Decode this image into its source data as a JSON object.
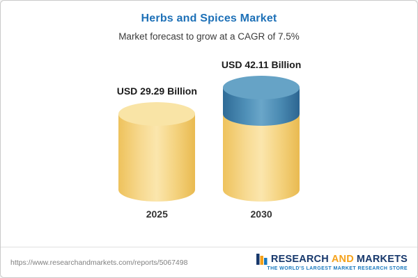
{
  "header": {
    "title": "Herbs and Spices Market",
    "subtitle": "Market forecast to grow at a CAGR of 7.5%"
  },
  "chart_data": {
    "type": "bar",
    "subtype": "3d-cylinder",
    "title": "Herbs and Spices Market",
    "subtitle": "Market forecast to grow at a CAGR of 7.5%",
    "categories": [
      "2025",
      "2030"
    ],
    "values": [
      29.29,
      42.11
    ],
    "value_labels": [
      "USD 29.29 Billion",
      "USD 42.11 Billion"
    ],
    "unit": "USD Billion",
    "cagr_pct": 7.5,
    "ylim": [
      0,
      45
    ],
    "grid": false,
    "legend": false,
    "notes": "2030 bar shows 2025 base value in yellow with incremental growth segment in blue on top",
    "colors": {
      "bar_base": "#F3D27D",
      "bar_base_top": "#F9E4A6",
      "bar_growth": "#3D7BA6",
      "bar_growth_top": "#66A3C6",
      "title_text": "#1D70B7"
    }
  },
  "footer": {
    "url": "https://www.researchandmarkets.com/reports/5067498",
    "logo": {
      "part1": "RESEARCH",
      "part2": "AND",
      "part3": "MARKETS",
      "tagline": "THE WORLD'S LARGEST MARKET RESEARCH STORE"
    }
  }
}
